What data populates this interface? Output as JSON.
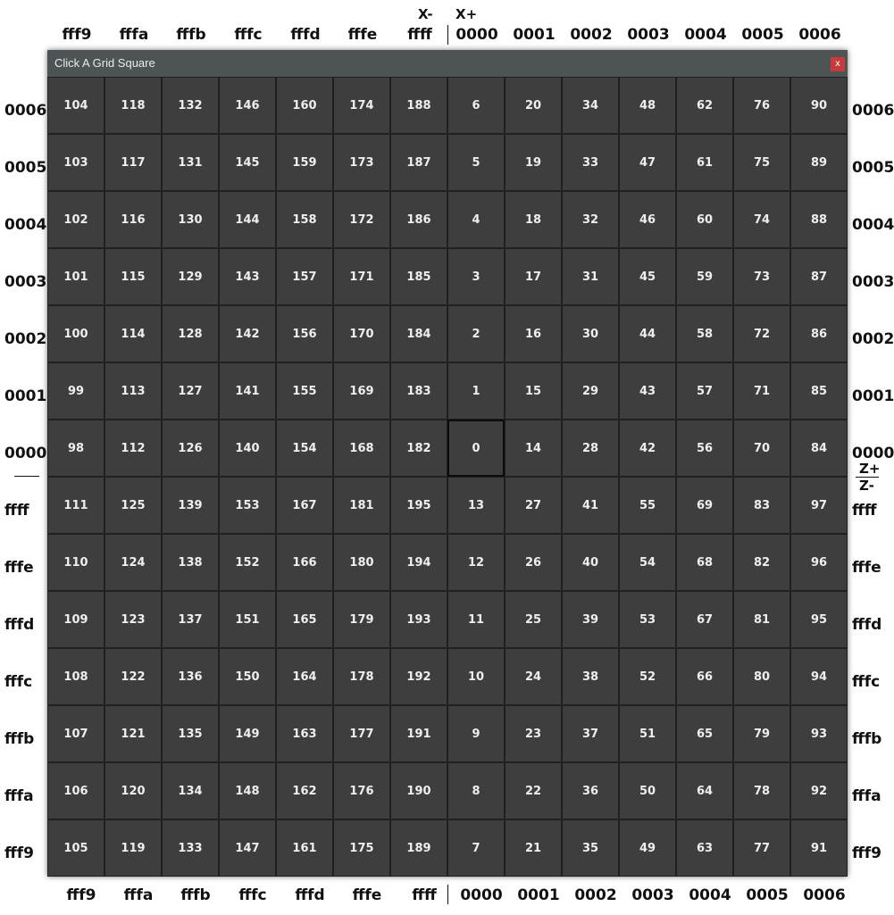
{
  "window": {
    "title": "Click A Grid Square",
    "close_label": "x"
  },
  "axis": {
    "x_negative_tag": "X-",
    "x_positive_tag": "X+",
    "z_positive_tag": "Z+",
    "z_negative_tag": "Z-",
    "columns": [
      "fff9",
      "fffa",
      "fffb",
      "fffc",
      "fffd",
      "fffe",
      "ffff",
      "0000",
      "0001",
      "0002",
      "0003",
      "0004",
      "0005",
      "0006"
    ],
    "rows": [
      "0006",
      "0005",
      "0004",
      "0003",
      "0002",
      "0001",
      "0000",
      "ffff",
      "fffe",
      "fffd",
      "fffc",
      "fffb",
      "fffa",
      "fff9"
    ]
  },
  "grid": {
    "selected_value": "0",
    "rows": [
      [
        "104",
        "118",
        "132",
        "146",
        "160",
        "174",
        "188",
        "6",
        "20",
        "34",
        "48",
        "62",
        "76",
        "90"
      ],
      [
        "103",
        "117",
        "131",
        "145",
        "159",
        "173",
        "187",
        "5",
        "19",
        "33",
        "47",
        "61",
        "75",
        "89"
      ],
      [
        "102",
        "116",
        "130",
        "144",
        "158",
        "172",
        "186",
        "4",
        "18",
        "32",
        "46",
        "60",
        "74",
        "88"
      ],
      [
        "101",
        "115",
        "129",
        "143",
        "157",
        "171",
        "185",
        "3",
        "17",
        "31",
        "45",
        "59",
        "73",
        "87"
      ],
      [
        "100",
        "114",
        "128",
        "142",
        "156",
        "170",
        "184",
        "2",
        "16",
        "30",
        "44",
        "58",
        "72",
        "86"
      ],
      [
        "99",
        "113",
        "127",
        "141",
        "155",
        "169",
        "183",
        "1",
        "15",
        "29",
        "43",
        "57",
        "71",
        "85"
      ],
      [
        "98",
        "112",
        "126",
        "140",
        "154",
        "168",
        "182",
        "0",
        "14",
        "28",
        "42",
        "56",
        "70",
        "84"
      ],
      [
        "111",
        "125",
        "139",
        "153",
        "167",
        "181",
        "195",
        "13",
        "27",
        "41",
        "55",
        "69",
        "83",
        "97"
      ],
      [
        "110",
        "124",
        "138",
        "152",
        "166",
        "180",
        "194",
        "12",
        "26",
        "40",
        "54",
        "68",
        "82",
        "96"
      ],
      [
        "109",
        "123",
        "137",
        "151",
        "165",
        "179",
        "193",
        "11",
        "25",
        "39",
        "53",
        "67",
        "81",
        "95"
      ],
      [
        "108",
        "122",
        "136",
        "150",
        "164",
        "178",
        "192",
        "10",
        "24",
        "38",
        "52",
        "66",
        "80",
        "94"
      ],
      [
        "107",
        "121",
        "135",
        "149",
        "163",
        "177",
        "191",
        "9",
        "23",
        "37",
        "51",
        "65",
        "79",
        "93"
      ],
      [
        "106",
        "120",
        "134",
        "148",
        "162",
        "176",
        "190",
        "8",
        "22",
        "36",
        "50",
        "64",
        "78",
        "92"
      ],
      [
        "105",
        "119",
        "133",
        "147",
        "161",
        "175",
        "189",
        "7",
        "21",
        "35",
        "49",
        "63",
        "77",
        "91"
      ]
    ]
  }
}
